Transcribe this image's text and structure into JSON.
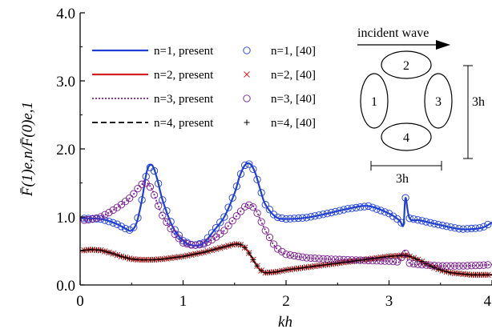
{
  "chart_data": {
    "type": "line",
    "xlabel": "kh",
    "ylabel": "F̄(1)e,n/F̄(0)e,1",
    "xlim": [
      0,
      4
    ],
    "ylim": [
      0,
      4
    ],
    "xticks": [
      "0",
      "1",
      "2",
      "3",
      "4"
    ],
    "yticks": [
      "0.0",
      "1.0",
      "2.0",
      "3.0",
      "4.0"
    ],
    "legend_position": "top-left",
    "series": [
      {
        "name": "n=1, present",
        "ref_name": "n=1, [40]",
        "color": "#1f3fd6",
        "style": "solid",
        "marker": "circle",
        "x": [
          0.0,
          0.2,
          0.35,
          0.45,
          0.5,
          0.55,
          0.6,
          0.65,
          0.7,
          0.75,
          0.8,
          0.9,
          1.0,
          1.1,
          1.2,
          1.3,
          1.4,
          1.5,
          1.55,
          1.6,
          1.65,
          1.7,
          1.75,
          1.8,
          1.9,
          2.0,
          2.2,
          2.4,
          2.6,
          2.8,
          3.0,
          3.1,
          3.14,
          3.16,
          3.2,
          3.3,
          3.5,
          3.7,
          3.9,
          4.0
        ],
        "y": [
          0.98,
          0.97,
          0.9,
          0.82,
          0.8,
          0.92,
          1.25,
          1.68,
          1.76,
          1.55,
          1.25,
          0.85,
          0.65,
          0.58,
          0.62,
          0.8,
          1.0,
          1.35,
          1.6,
          1.76,
          1.78,
          1.65,
          1.4,
          1.18,
          1.0,
          0.97,
          0.99,
          1.05,
          1.12,
          1.16,
          1.05,
          0.95,
          0.88,
          1.28,
          0.98,
          0.95,
          0.88,
          0.82,
          0.84,
          0.92
        ]
      },
      {
        "name": "n=2, present",
        "ref_name": "n=2, [40]",
        "color": "#d42020",
        "style": "solid",
        "marker": "x",
        "x": [
          0.0,
          0.1,
          0.2,
          0.3,
          0.4,
          0.5,
          0.6,
          0.7,
          0.8,
          0.9,
          1.0,
          1.1,
          1.2,
          1.3,
          1.4,
          1.5,
          1.55,
          1.6,
          1.65,
          1.7,
          1.75,
          1.8,
          1.9,
          2.0,
          2.2,
          2.4,
          2.6,
          2.8,
          3.0,
          3.1,
          3.15,
          3.2,
          3.3,
          3.4,
          3.5,
          3.6,
          3.8,
          4.0
        ],
        "y": [
          0.5,
          0.52,
          0.51,
          0.47,
          0.42,
          0.38,
          0.37,
          0.37,
          0.38,
          0.4,
          0.42,
          0.45,
          0.48,
          0.52,
          0.56,
          0.6,
          0.6,
          0.55,
          0.45,
          0.32,
          0.22,
          0.18,
          0.19,
          0.22,
          0.26,
          0.3,
          0.34,
          0.38,
          0.42,
          0.43,
          0.44,
          0.42,
          0.36,
          0.28,
          0.22,
          0.18,
          0.15,
          0.15
        ]
      },
      {
        "name": "n=3, present",
        "ref_name": "n=3, [40]",
        "color": "#7a1f8f",
        "style": "dotted",
        "marker": "circle",
        "x": [
          0.0,
          0.1,
          0.2,
          0.3,
          0.4,
          0.5,
          0.55,
          0.6,
          0.65,
          0.7,
          0.75,
          0.8,
          0.9,
          1.0,
          1.1,
          1.2,
          1.3,
          1.4,
          1.5,
          1.6,
          1.65,
          1.7,
          1.8,
          1.9,
          2.0,
          2.2,
          2.4,
          2.6,
          2.8,
          3.0,
          3.1,
          3.15,
          3.2,
          3.3,
          3.5,
          3.7,
          3.9,
          4.0
        ],
        "y": [
          0.95,
          0.96,
          1.0,
          1.08,
          1.18,
          1.3,
          1.4,
          1.48,
          1.5,
          1.4,
          1.2,
          1.02,
          0.78,
          0.62,
          0.58,
          0.6,
          0.68,
          0.8,
          0.98,
          1.15,
          1.18,
          1.12,
          0.8,
          0.55,
          0.45,
          0.4,
          0.38,
          0.37,
          0.36,
          0.35,
          0.34,
          0.5,
          0.32,
          0.3,
          0.28,
          0.28,
          0.29,
          0.3
        ]
      },
      {
        "name": "n=4, present",
        "ref_name": "n=4, [40]",
        "color": "#000000",
        "style": "dashed",
        "marker": "plus",
        "x": [
          0.0,
          0.1,
          0.2,
          0.3,
          0.4,
          0.5,
          0.6,
          0.7,
          0.8,
          0.9,
          1.0,
          1.1,
          1.2,
          1.3,
          1.4,
          1.5,
          1.55,
          1.6,
          1.65,
          1.7,
          1.75,
          1.8,
          1.9,
          2.0,
          2.2,
          2.4,
          2.6,
          2.8,
          3.0,
          3.1,
          3.15,
          3.2,
          3.3,
          3.4,
          3.5,
          3.6,
          3.8,
          4.0
        ],
        "y": [
          0.5,
          0.52,
          0.51,
          0.47,
          0.42,
          0.38,
          0.37,
          0.37,
          0.38,
          0.4,
          0.42,
          0.45,
          0.48,
          0.52,
          0.56,
          0.6,
          0.6,
          0.55,
          0.45,
          0.32,
          0.22,
          0.18,
          0.19,
          0.22,
          0.26,
          0.3,
          0.34,
          0.38,
          0.42,
          0.43,
          0.44,
          0.42,
          0.36,
          0.28,
          0.22,
          0.18,
          0.15,
          0.15
        ]
      }
    ],
    "inset": {
      "title": "incident wave",
      "cylinders": [
        "1",
        "2",
        "3",
        "4"
      ],
      "dim_vertical": "3h",
      "dim_horizontal": "3h"
    }
  }
}
